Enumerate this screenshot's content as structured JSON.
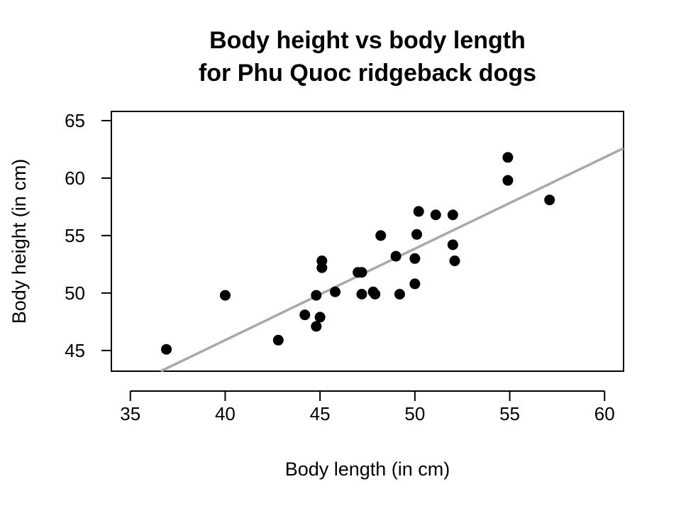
{
  "chart_data": {
    "type": "scatter",
    "title_line1": "Body height vs body length",
    "title_line2": "for Phu Quoc ridgeback dogs",
    "xlabel": "Body length (in cm)",
    "ylabel": "Body height (in cm)",
    "xlim": [
      34,
      61
    ],
    "ylim": [
      43.2,
      65.8
    ],
    "xticks": [
      "35",
      "40",
      "45",
      "50",
      "55",
      "60"
    ],
    "yticks": [
      "45",
      "50",
      "55",
      "60",
      "65"
    ],
    "grid": false,
    "point_color": "#000000",
    "line_color": "#a9a9a9",
    "regression_line": {
      "x": [
        36.6,
        61
      ],
      "y": [
        43.2,
        62.6
      ]
    },
    "points": [
      {
        "x": 36.9,
        "y": 45.1
      },
      {
        "x": 40.0,
        "y": 49.8
      },
      {
        "x": 42.8,
        "y": 45.9
      },
      {
        "x": 44.2,
        "y": 48.1
      },
      {
        "x": 44.8,
        "y": 49.8
      },
      {
        "x": 44.8,
        "y": 47.1
      },
      {
        "x": 45.0,
        "y": 47.9
      },
      {
        "x": 45.1,
        "y": 52.8
      },
      {
        "x": 45.1,
        "y": 52.2
      },
      {
        "x": 45.8,
        "y": 50.1
      },
      {
        "x": 47.0,
        "y": 51.8
      },
      {
        "x": 47.2,
        "y": 51.8
      },
      {
        "x": 47.2,
        "y": 49.9
      },
      {
        "x": 47.8,
        "y": 50.1
      },
      {
        "x": 47.9,
        "y": 49.9
      },
      {
        "x": 48.2,
        "y": 55.0
      },
      {
        "x": 49.0,
        "y": 53.2
      },
      {
        "x": 49.2,
        "y": 49.9
      },
      {
        "x": 50.0,
        "y": 50.8
      },
      {
        "x": 50.0,
        "y": 53.0
      },
      {
        "x": 50.1,
        "y": 55.1
      },
      {
        "x": 50.2,
        "y": 57.1
      },
      {
        "x": 51.1,
        "y": 56.8
      },
      {
        "x": 52.0,
        "y": 54.2
      },
      {
        "x": 52.0,
        "y": 56.8
      },
      {
        "x": 52.1,
        "y": 52.8
      },
      {
        "x": 54.9,
        "y": 59.8
      },
      {
        "x": 54.9,
        "y": 61.8
      },
      {
        "x": 57.1,
        "y": 58.1
      }
    ]
  }
}
